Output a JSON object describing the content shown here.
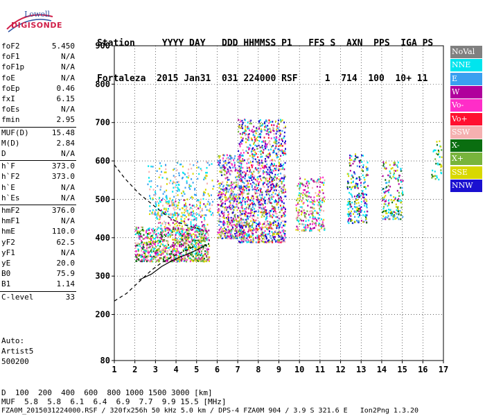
{
  "logo": {
    "maker": "Lowell",
    "brand": "DIGISONDE"
  },
  "header": {
    "line1": "Station     YYYY DAY   DDD HHMMSS P1   FFS S  AXN  PPS  IGA PS",
    "line2": "Fortaleza  2015 Jan31  031 224000 RSF     1  714  100  10+ 11"
  },
  "params": [
    {
      "label": "foF2",
      "value": "5.450"
    },
    {
      "label": "foF1",
      "value": "N/A"
    },
    {
      "label": "foF1p",
      "value": "N/A"
    },
    {
      "label": "foE",
      "value": "N/A"
    },
    {
      "label": "foEp",
      "value": "0.46"
    },
    {
      "label": "fxI",
      "value": "6.15"
    },
    {
      "label": "foEs",
      "value": "N/A"
    },
    {
      "label": "fmin",
      "value": "2.95"
    },
    {
      "label": "MUF(D)",
      "value": "15.48"
    },
    {
      "label": "M(D)",
      "value": "2.84"
    },
    {
      "label": "D",
      "value": "N/A"
    },
    {
      "label": "h`F",
      "value": "373.0"
    },
    {
      "label": "h`F2",
      "value": "373.0"
    },
    {
      "label": "h`E",
      "value": "N/A"
    },
    {
      "label": "h`Es",
      "value": "N/A"
    },
    {
      "label": "hmF2",
      "value": "376.0"
    },
    {
      "label": "hmF1",
      "value": "N/A"
    },
    {
      "label": "hmE",
      "value": "110.0"
    },
    {
      "label": "yF2",
      "value": "62.5"
    },
    {
      "label": "yF1",
      "value": "N/A"
    },
    {
      "label": "yE",
      "value": "20.0"
    },
    {
      "label": "B0",
      "value": "75.9"
    },
    {
      "label": "B1",
      "value": "1.14"
    },
    {
      "label": "C-level",
      "value": "33"
    }
  ],
  "auto": [
    "Auto:",
    "Artist5",
    "500200"
  ],
  "legend": [
    {
      "label": "NoVal",
      "color": "#808080"
    },
    {
      "label": "NNE",
      "color": "#00e5ee"
    },
    {
      "label": "E",
      "color": "#3aa0f0"
    },
    {
      "label": "W",
      "color": "#b0009c"
    },
    {
      "label": "Vo-",
      "color": "#ff2dc8"
    },
    {
      "label": "Vo+",
      "color": "#ff1030"
    },
    {
      "label": "SSW",
      "color": "#f5b0b0"
    },
    {
      "label": "X-",
      "color": "#0a6e10"
    },
    {
      "label": "X+",
      "color": "#78b43c"
    },
    {
      "label": "SSE",
      "color": "#d8d800"
    },
    {
      "label": "NNW",
      "color": "#1a10d0"
    }
  ],
  "footer": {
    "d_label": "D",
    "d_values": "  100  200  400  600  800 1000 1500 3000 [km]",
    "muf_label": "MUF",
    "muf_values": "  5.8  5.8  6.1  6.4  6.9  7.7  9.9 15.5 [MHz]",
    "file_line": "FZA0M_2015031224000.RSF / 320fx256h 50 kHz 5.0 km / DPS-4 FZA0M 904 / 3.9 S 321.6 E   Ion2Png 1.3.20"
  },
  "chart_data": {
    "type": "scatter",
    "xlabel": "",
    "ylabel": "",
    "xlim": [
      1,
      17
    ],
    "ylim": [
      80,
      900
    ],
    "x_ticks": [
      1,
      2,
      3,
      4,
      5,
      6,
      7,
      8,
      9,
      10,
      11,
      12,
      13,
      14,
      15,
      16,
      17
    ],
    "y_ticks": [
      80,
      200,
      300,
      400,
      500,
      600,
      700,
      800,
      900
    ],
    "grid": true,
    "legend_position": "right",
    "traces": [
      {
        "name": "",
        "style": "dashed",
        "x": [
          1.0,
          1.5,
          2.2,
          3.0,
          3.6,
          4.1,
          4.6,
          5.0,
          5.3
        ],
        "y": [
          590,
          555,
          515,
          480,
          455,
          440,
          430,
          425,
          420
        ]
      },
      {
        "name": "",
        "style": "dashed",
        "x": [
          1.0,
          1.6,
          2.2,
          2.8,
          3.3,
          3.8,
          4.2,
          4.6,
          5.0
        ],
        "y": [
          235,
          255,
          285,
          315,
          335,
          350,
          360,
          370,
          380
        ]
      },
      {
        "name": "",
        "style": "solid",
        "x": [
          2.2,
          2.8,
          3.3,
          3.8,
          4.2,
          4.6,
          5.0,
          5.5
        ],
        "y": [
          290,
          305,
          325,
          340,
          350,
          358,
          368,
          382
        ]
      }
    ]
  }
}
